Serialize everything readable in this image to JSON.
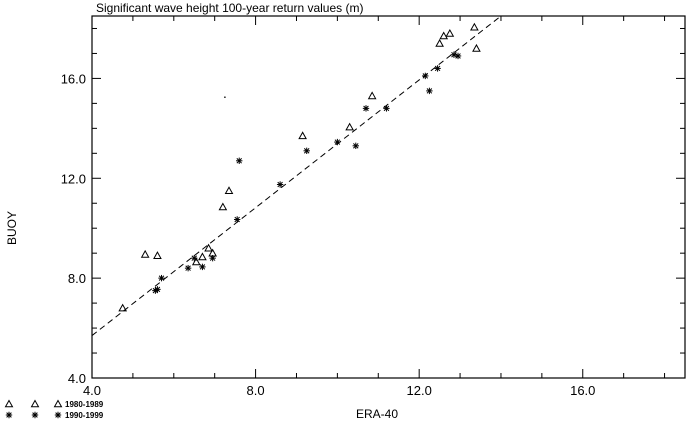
{
  "chart_data": {
    "type": "scatter",
    "title": "Significant wave height 100-year return values (m)",
    "xlabel": "ERA-40",
    "ylabel": "BUOY",
    "xlim": [
      4.0,
      18.5
    ],
    "ylim": [
      4.0,
      18.5
    ],
    "xticks": [
      4.0,
      8.0,
      12.0,
      16.0
    ],
    "yticks": [
      4.0,
      8.0,
      12.0,
      16.0
    ],
    "tick_labels_x": [
      "4.0",
      "8.0",
      "12.0",
      "16.0"
    ],
    "tick_labels_y": [
      "4.0",
      "8.0",
      "12.0",
      "16.0"
    ],
    "grid": false,
    "legend_position": "bottom-left-outside",
    "series": [
      {
        "name": "1980-1989",
        "marker": "triangle",
        "points": [
          [
            4.75,
            6.8
          ],
          [
            5.3,
            8.95
          ],
          [
            5.6,
            8.9
          ],
          [
            6.55,
            8.65
          ],
          [
            6.7,
            8.85
          ],
          [
            6.85,
            9.2
          ],
          [
            6.95,
            9.0
          ],
          [
            7.2,
            10.85
          ],
          [
            7.35,
            11.5
          ],
          [
            9.15,
            13.7
          ],
          [
            10.3,
            14.05
          ],
          [
            10.85,
            15.3
          ],
          [
            12.5,
            17.4
          ],
          [
            12.6,
            17.7
          ],
          [
            12.75,
            17.8
          ],
          [
            13.35,
            18.05
          ],
          [
            13.4,
            17.2
          ]
        ]
      },
      {
        "name": "1990-1999",
        "marker": "asterisk",
        "points": [
          [
            5.55,
            7.5
          ],
          [
            5.6,
            7.55
          ],
          [
            5.7,
            8.0
          ],
          [
            6.35,
            8.4
          ],
          [
            6.5,
            8.8
          ],
          [
            6.7,
            8.45
          ],
          [
            6.95,
            8.8
          ],
          [
            7.55,
            10.35
          ],
          [
            7.6,
            12.7
          ],
          [
            8.6,
            11.75
          ],
          [
            9.25,
            13.1
          ],
          [
            10.0,
            13.45
          ],
          [
            10.45,
            13.3
          ],
          [
            10.7,
            14.8
          ],
          [
            11.2,
            14.8
          ],
          [
            12.15,
            16.1
          ],
          [
            12.25,
            15.5
          ],
          [
            12.45,
            16.4
          ],
          [
            12.85,
            16.95
          ],
          [
            12.95,
            16.9
          ]
        ]
      }
    ],
    "fit_line": {
      "style": "dashed",
      "points": [
        [
          4.0,
          5.7
        ],
        [
          14.0,
          18.5
        ]
      ]
    },
    "stray_dot": [
      7.25,
      15.25
    ]
  }
}
